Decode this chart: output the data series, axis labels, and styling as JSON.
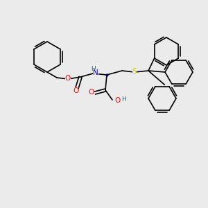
{
  "bg_color": "#ebebeb",
  "bond_color": "#000000",
  "bond_width": 1.2,
  "atom_colors": {
    "O": "#ff0000",
    "N": "#0000cd",
    "S": "#cccc00",
    "H_on_N": "#008080",
    "H_on_O": "#008080",
    "C": "#000000"
  },
  "font_size_atom": 7.5,
  "font_size_small": 6.0
}
